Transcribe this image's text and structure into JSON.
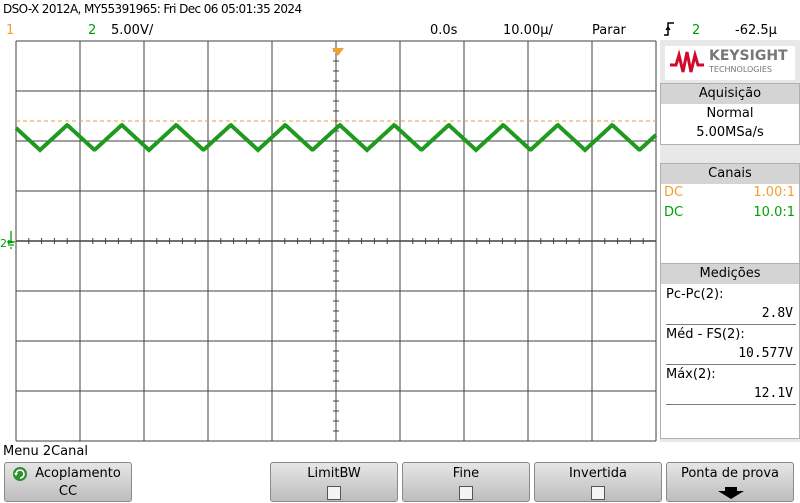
{
  "header": {
    "title": "DSO-X 2012A, MY55391965: Fri Dec 06 05:01:35 2024",
    "ch1_num": "1",
    "ch2_num": "2",
    "ch2_scale": "5.00V/",
    "time_delay": "0.0s",
    "time_scale": "10.00µ/",
    "run_state": "Parar",
    "trigger_icon": "trigger-edge-icon",
    "trigger_channel": "2",
    "trigger_level": "-62.5µ"
  },
  "colors": {
    "ch1": "#f0a030",
    "ch2": "#00a000",
    "trace": "#1f9a1f",
    "trigger_level_line": "#e0a040",
    "grid": "#404040"
  },
  "logo": {
    "brand": "KEYSIGHT",
    "sub": "TECHNOLOGIES"
  },
  "acquisition": {
    "title": "Aquisição",
    "mode": "Normal",
    "rate": "5.00MSa/s"
  },
  "channels": {
    "title": "Canais",
    "rows": [
      {
        "coupling": "DC",
        "probe": "1.00:1"
      },
      {
        "coupling": "DC",
        "probe": "10.0:1"
      }
    ]
  },
  "measurements": {
    "title": "Medições",
    "items": [
      {
        "label": "Pc-Pc(2):",
        "value": "2.8V"
      },
      {
        "label": "Méd - FS(2):",
        "value": "10.577V"
      },
      {
        "label": "Máx(2):",
        "value": "12.1V"
      }
    ]
  },
  "menu": {
    "label": "Menu 2Canal"
  },
  "softkeys": [
    {
      "label": "Acoplamento",
      "value": "CC"
    },
    {
      "label": "LimitBW"
    },
    {
      "label": "Fine"
    },
    {
      "label": "Invertida"
    },
    {
      "label": "Ponta de prova"
    }
  ],
  "ground_marker": "2"
}
